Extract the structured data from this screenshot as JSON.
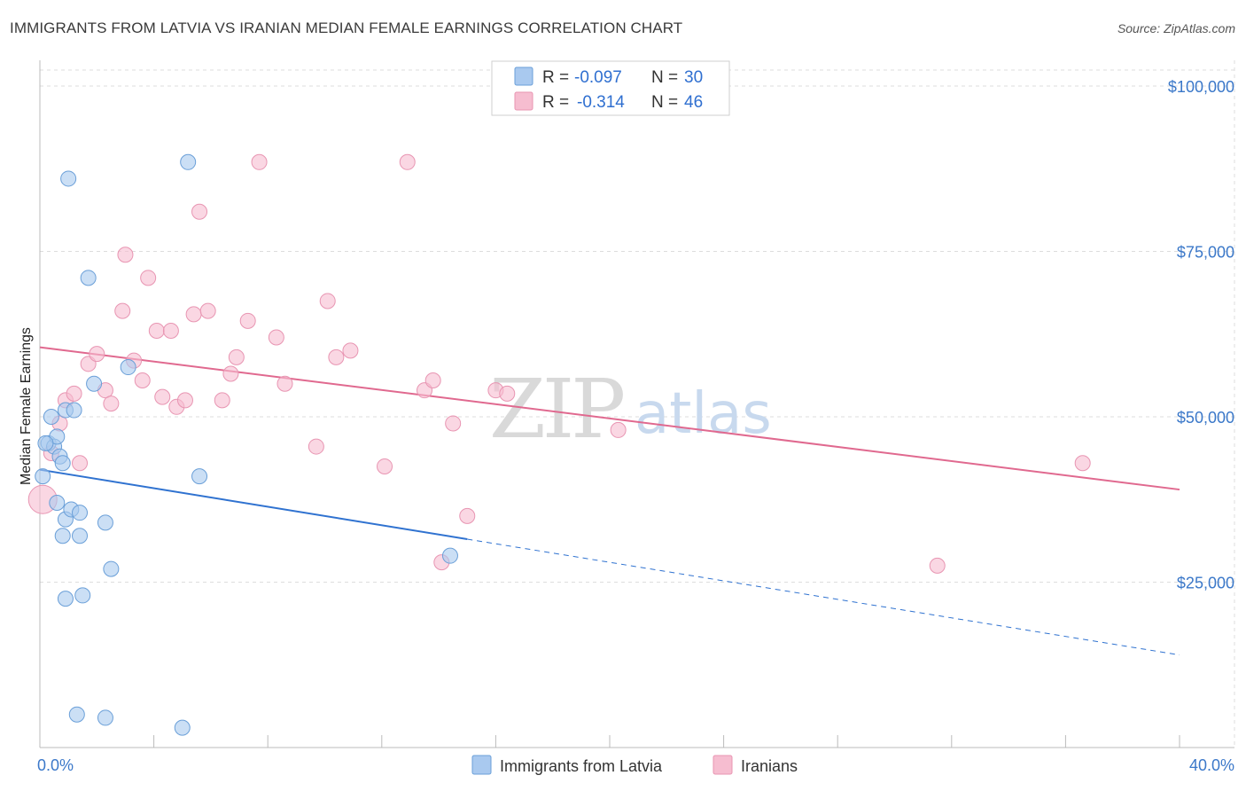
{
  "title": "IMMIGRANTS FROM LATVIA VS IRANIAN MEDIAN FEMALE EARNINGS CORRELATION CHART",
  "source": "Source: ZipAtlas.com",
  "watermark": {
    "zip": "ZIP",
    "atlas": "atlas"
  },
  "colors": {
    "blue_fill": "#a9c9ef",
    "blue_stroke": "#6a9fd8",
    "blue_line": "#2f72d0",
    "pink_fill": "#f6bdd0",
    "pink_stroke": "#e895b2",
    "pink_line": "#e0698f",
    "tick": "#3b78c9",
    "grid": "#dddddd"
  },
  "legend": {
    "rows": [
      {
        "r_label": "R = ",
        "r_value": "-0.097",
        "n_label": "N = ",
        "n_value": "30",
        "series": "blue"
      },
      {
        "r_label": "R = ",
        "r_value": "-0.314",
        "n_label": "N = ",
        "n_value": "46",
        "series": "pink"
      }
    ]
  },
  "bottom_legend": [
    {
      "label": "Immigrants from Latvia",
      "series": "blue"
    },
    {
      "label": "Iranians",
      "series": "pink"
    }
  ],
  "chart_data": {
    "type": "scatter",
    "title": "IMMIGRANTS FROM LATVIA VS IRANIAN MEDIAN FEMALE EARNINGS CORRELATION CHART",
    "xlabel": "",
    "ylabel": "Median Female Earnings",
    "xlim": [
      0,
      40
    ],
    "ylim": [
      0,
      105000
    ],
    "x_tick_labels": [
      {
        "value": 0,
        "label": "0.0%"
      },
      {
        "value": 40,
        "label": "40.0%"
      }
    ],
    "x_minor_ticks": [
      4,
      8,
      12,
      16,
      20,
      24,
      28,
      32,
      36,
      40
    ],
    "y_ticks": [
      {
        "value": 25000,
        "label": "$25,000"
      },
      {
        "value": 50000,
        "label": "$50,000"
      },
      {
        "value": 75000,
        "label": "$75,000"
      },
      {
        "value": 100000,
        "label": "$100,000"
      }
    ],
    "series": [
      {
        "name": "Immigrants from Latvia",
        "color": "blue",
        "r": -0.097,
        "n": 30,
        "points": [
          [
            0.1,
            41000
          ],
          [
            0.3,
            46000
          ],
          [
            0.4,
            50000
          ],
          [
            0.5,
            45500
          ],
          [
            0.6,
            47000
          ],
          [
            0.7,
            44000
          ],
          [
            0.6,
            37000
          ],
          [
            0.8,
            43000
          ],
          [
            0.9,
            51000
          ],
          [
            0.8,
            32000
          ],
          [
            0.9,
            34500
          ],
          [
            0.9,
            22500
          ],
          [
            1.0,
            86000
          ],
          [
            1.1,
            36000
          ],
          [
            1.2,
            51000
          ],
          [
            1.4,
            35500
          ],
          [
            1.4,
            32000
          ],
          [
            1.5,
            23000
          ],
          [
            1.7,
            71000
          ],
          [
            1.9,
            55000
          ],
          [
            1.3,
            5000
          ],
          [
            2.3,
            34000
          ],
          [
            2.5,
            27000
          ],
          [
            3.1,
            57500
          ],
          [
            2.3,
            4500
          ],
          [
            5.2,
            88500
          ],
          [
            5.6,
            41000
          ],
          [
            5.0,
            3000
          ],
          [
            14.4,
            29000
          ],
          [
            0.2,
            46000
          ]
        ],
        "trend": {
          "x0": 0,
          "y0": 42000,
          "x1": 15.0,
          "y1": 31500,
          "dash_to_x": 40,
          "dash_to_y": 14000
        }
      },
      {
        "name": "Iranians",
        "color": "pink",
        "r": -0.314,
        "n": 46,
        "points": [
          [
            0.1,
            37500
          ],
          [
            0.4,
            44500
          ],
          [
            0.7,
            49000
          ],
          [
            0.9,
            52500
          ],
          [
            1.2,
            53500
          ],
          [
            1.4,
            43000
          ],
          [
            1.7,
            58000
          ],
          [
            2.0,
            59500
          ],
          [
            2.3,
            54000
          ],
          [
            2.5,
            52000
          ],
          [
            2.9,
            66000
          ],
          [
            3.0,
            74500
          ],
          [
            3.3,
            58500
          ],
          [
            3.6,
            55500
          ],
          [
            3.8,
            71000
          ],
          [
            4.1,
            63000
          ],
          [
            4.3,
            53000
          ],
          [
            4.6,
            63000
          ],
          [
            4.8,
            51500
          ],
          [
            5.1,
            52500
          ],
          [
            5.4,
            65500
          ],
          [
            5.6,
            81000
          ],
          [
            5.9,
            66000
          ],
          [
            6.4,
            52500
          ],
          [
            6.7,
            56500
          ],
          [
            6.9,
            59000
          ],
          [
            7.3,
            64500
          ],
          [
            7.7,
            88500
          ],
          [
            8.3,
            62000
          ],
          [
            8.6,
            55000
          ],
          [
            9.7,
            45500
          ],
          [
            10.1,
            67500
          ],
          [
            10.4,
            59000
          ],
          [
            10.9,
            60000
          ],
          [
            12.1,
            42500
          ],
          [
            12.9,
            88500
          ],
          [
            13.5,
            54000
          ],
          [
            13.8,
            55500
          ],
          [
            14.1,
            28000
          ],
          [
            14.5,
            49000
          ],
          [
            15.0,
            35000
          ],
          [
            16.0,
            54000
          ],
          [
            16.4,
            53500
          ],
          [
            20.3,
            48000
          ],
          [
            31.5,
            27500
          ],
          [
            36.6,
            43000
          ]
        ],
        "trend": {
          "x0": 0,
          "y0": 60500,
          "x1": 40,
          "y1": 39000
        }
      }
    ]
  }
}
